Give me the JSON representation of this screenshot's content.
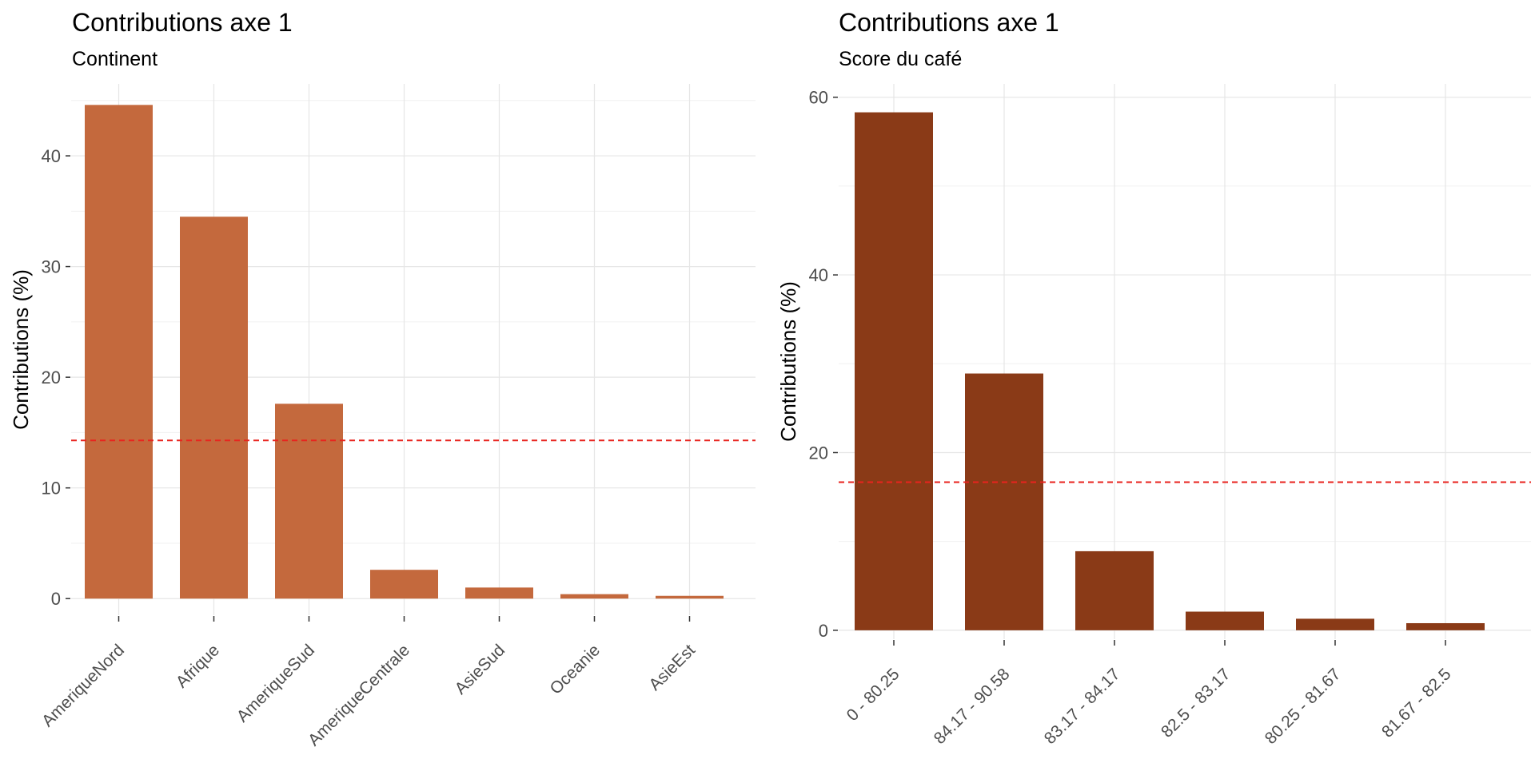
{
  "chart_data": [
    {
      "type": "bar",
      "title": "Contributions axe 1",
      "subtitle": "Continent",
      "ylabel": "Contributions (%)",
      "xlabel": "",
      "categories": [
        "AmeriqueNord",
        "Afrique",
        "AmeriqueSud",
        "AmeriqueCentrale",
        "AsieSud",
        "Oceanie",
        "AsieEst"
      ],
      "values": [
        44.6,
        34.5,
        17.6,
        2.6,
        1.0,
        0.4,
        0.25
      ],
      "yticks": [
        0,
        10,
        20,
        30,
        40
      ],
      "ylim": [
        -1.5,
        46.5
      ],
      "reference_line": 14.29,
      "bar_color": "#C4693D",
      "reference_color": "#E8231E",
      "grid": true,
      "legend": "none"
    },
    {
      "type": "bar",
      "title": "Contributions axe 1",
      "subtitle": "Score du café",
      "ylabel": "Contributions (%)",
      "xlabel": "",
      "categories": [
        "0 - 80.25",
        "84.17 - 90.58",
        "83.17 - 84.17",
        "82.5 - 83.17",
        "80.25 - 81.67",
        "81.67 - 82.5"
      ],
      "values": [
        58.3,
        28.9,
        8.9,
        2.1,
        1.3,
        0.8
      ],
      "yticks": [
        0,
        20,
        40,
        60
      ],
      "ylim": [
        -1.0,
        61.5
      ],
      "reference_line": 16.67,
      "bar_color": "#8A3A17",
      "reference_color": "#E8231E",
      "grid": true,
      "legend": "none"
    }
  ]
}
